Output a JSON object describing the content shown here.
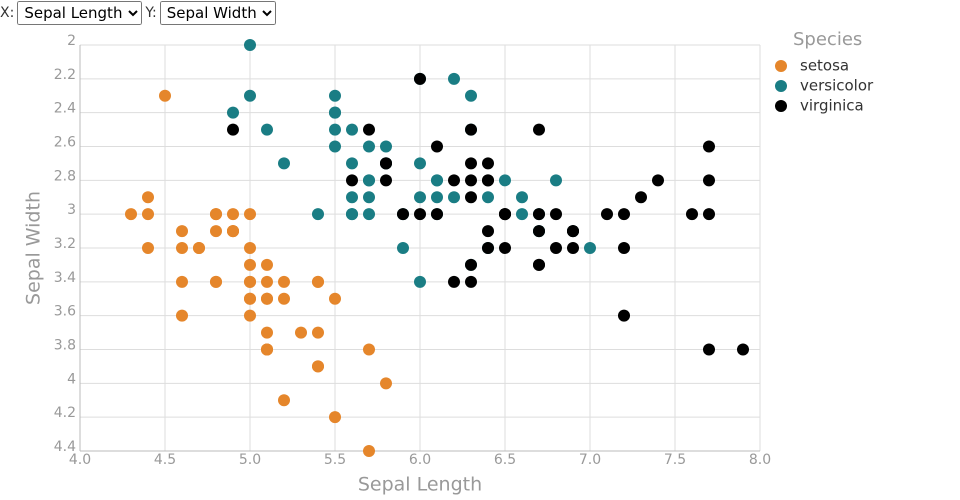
{
  "controls": {
    "x_label": "X:",
    "x_selected": "Sepal Length",
    "y_label": "Y:",
    "y_selected": "Sepal Width"
  },
  "chart_data": {
    "type": "scatter",
    "x_label": "Sepal Length",
    "y_label": "Sepal Width",
    "legend_title": "Species",
    "xlim": [
      4,
      8
    ],
    "ylim": [
      2,
      4.4
    ],
    "y_inverted": true,
    "grid": true,
    "xticks": [
      {
        "value": 4,
        "label": "4.0"
      },
      {
        "value": 4.5,
        "label": "4.5"
      },
      {
        "value": 5,
        "label": "5.0"
      },
      {
        "value": 5.5,
        "label": "5.5"
      },
      {
        "value": 6,
        "label": "6.0"
      },
      {
        "value": 6.5,
        "label": "6.5"
      },
      {
        "value": 7,
        "label": "7.0"
      },
      {
        "value": 7.5,
        "label": "7.5"
      },
      {
        "value": 8,
        "label": "8.0"
      }
    ],
    "yticks": [
      2,
      2.2,
      2.4,
      2.6,
      2.8,
      3,
      3.2,
      3.4,
      3.6,
      3.8,
      4,
      4.2,
      4.4
    ],
    "series": [
      {
        "name": "setosa",
        "color": "#e5862b",
        "x": [
          5.1,
          4.9,
          4.7,
          4.6,
          5.0,
          5.4,
          4.6,
          5.0,
          4.4,
          4.9,
          5.4,
          4.8,
          4.8,
          4.3,
          5.8,
          5.7,
          5.4,
          5.1,
          5.7,
          5.1,
          5.4,
          5.1,
          4.6,
          5.1,
          4.8,
          5.0,
          5.0,
          5.2,
          5.2,
          4.7,
          4.8,
          5.4,
          5.2,
          5.5,
          4.9,
          5.0,
          5.5,
          4.9,
          4.4,
          5.1,
          5.0,
          4.5,
          4.4,
          5.0,
          5.1,
          4.8,
          5.1,
          4.6,
          5.3,
          5.0
        ],
        "y": [
          3.5,
          3.0,
          3.2,
          3.1,
          3.6,
          3.9,
          3.4,
          3.4,
          2.9,
          3.1,
          3.7,
          3.4,
          3.0,
          3.0,
          4.0,
          4.4,
          3.9,
          3.5,
          3.8,
          3.8,
          3.4,
          3.7,
          3.6,
          3.3,
          3.4,
          3.0,
          3.4,
          3.5,
          3.4,
          3.2,
          3.1,
          3.4,
          4.1,
          4.2,
          3.1,
          3.2,
          3.5,
          3.1,
          3.0,
          3.4,
          3.5,
          2.3,
          3.2,
          3.5,
          3.8,
          3.0,
          3.8,
          3.2,
          3.7,
          3.3
        ]
      },
      {
        "name": "versicolor",
        "color": "#1a7d84",
        "x": [
          7.0,
          6.4,
          6.9,
          5.5,
          6.5,
          5.7,
          6.3,
          4.9,
          6.6,
          5.2,
          5.0,
          5.9,
          6.0,
          6.1,
          5.6,
          6.7,
          5.6,
          5.8,
          6.2,
          5.6,
          5.9,
          6.1,
          6.3,
          6.1,
          6.4,
          6.6,
          6.8,
          6.7,
          6.0,
          5.7,
          5.5,
          5.5,
          5.8,
          6.0,
          5.4,
          6.0,
          6.7,
          6.3,
          5.6,
          5.5,
          5.5,
          6.1,
          5.8,
          5.0,
          5.6,
          5.7,
          5.7,
          6.2,
          5.1,
          5.7
        ],
        "y": [
          3.2,
          3.2,
          3.1,
          2.3,
          2.8,
          2.8,
          3.3,
          2.4,
          2.9,
          2.7,
          2.0,
          3.0,
          2.2,
          2.9,
          2.9,
          3.1,
          3.0,
          2.7,
          2.2,
          2.5,
          3.2,
          2.8,
          2.5,
          2.8,
          2.9,
          3.0,
          2.8,
          3.0,
          2.9,
          2.6,
          2.4,
          2.4,
          2.7,
          2.7,
          3.0,
          3.4,
          3.1,
          2.3,
          3.0,
          2.5,
          2.6,
          3.0,
          2.6,
          2.3,
          2.7,
          3.0,
          2.9,
          2.9,
          2.5,
          2.8
        ]
      },
      {
        "name": "virginica",
        "color": "#000000",
        "x": [
          6.3,
          5.8,
          7.1,
          6.3,
          6.5,
          7.6,
          4.9,
          7.3,
          6.7,
          7.2,
          6.5,
          6.4,
          6.8,
          5.7,
          5.8,
          6.4,
          6.5,
          7.7,
          7.7,
          6.0,
          6.9,
          5.6,
          7.7,
          6.3,
          6.7,
          7.2,
          6.2,
          6.1,
          6.4,
          7.2,
          7.4,
          7.9,
          6.4,
          6.3,
          6.1,
          7.7,
          6.3,
          6.4,
          6.0,
          6.9,
          6.7,
          6.9,
          5.8,
          6.8,
          6.7,
          6.7,
          6.3,
          6.5,
          6.2,
          5.9
        ],
        "y": [
          3.3,
          2.7,
          3.0,
          2.9,
          3.0,
          3.0,
          2.5,
          2.9,
          2.5,
          3.6,
          3.2,
          2.7,
          3.0,
          2.5,
          2.8,
          3.2,
          3.0,
          3.8,
          2.6,
          2.2,
          3.2,
          2.8,
          2.8,
          2.7,
          3.3,
          3.2,
          2.8,
          3.0,
          2.8,
          3.0,
          2.8,
          3.8,
          2.8,
          2.8,
          2.6,
          3.0,
          3.4,
          3.1,
          3.0,
          3.1,
          3.1,
          3.1,
          2.7,
          3.2,
          3.3,
          3.0,
          2.5,
          3.0,
          3.4,
          3.0
        ]
      }
    ]
  }
}
